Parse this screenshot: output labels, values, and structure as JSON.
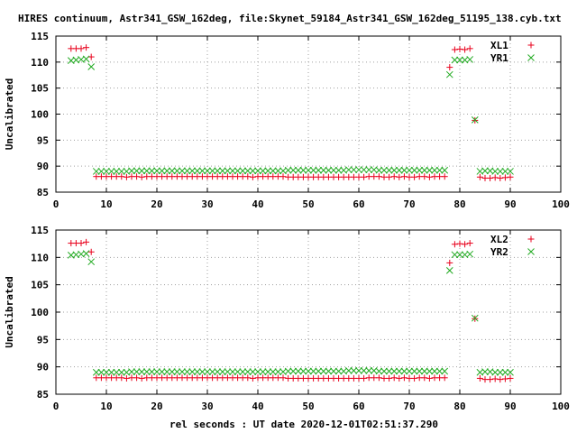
{
  "title": "HIRES continuum, Astr341_GSW_162deg, file:Skynet_59184_Astr341_GSW_162deg_51195_138.cyb.txt",
  "xlabel": "rel seconds : UT date 2020-12-01T02:51:37.290",
  "colors": {
    "xl": "#e8001c",
    "yr": "#22aa22",
    "axis": "#000000"
  },
  "chart_data": [
    {
      "type": "scatter",
      "ylabel": "Uncalibrated",
      "xlim": [
        0,
        100
      ],
      "ylim": [
        85,
        115
      ],
      "xticks": [
        0,
        10,
        20,
        30,
        40,
        50,
        60,
        70,
        80,
        90,
        100
      ],
      "yticks": [
        85,
        90,
        95,
        100,
        105,
        110,
        115
      ],
      "grid": true,
      "legend_position": "top-right",
      "series": [
        {
          "name": "XL1",
          "marker": "plus",
          "color": "#e8001c",
          "x": [
            3,
            4,
            5,
            6,
            7,
            8,
            9,
            10,
            11,
            12,
            13,
            14,
            15,
            16,
            17,
            18,
            19,
            20,
            21,
            22,
            23,
            24,
            25,
            26,
            27,
            28,
            29,
            30,
            31,
            32,
            33,
            34,
            35,
            36,
            37,
            38,
            39,
            40,
            41,
            42,
            43,
            44,
            45,
            46,
            47,
            48,
            49,
            50,
            51,
            52,
            53,
            54,
            55,
            56,
            57,
            58,
            59,
            60,
            61,
            62,
            63,
            64,
            65,
            66,
            67,
            68,
            69,
            70,
            71,
            72,
            73,
            74,
            75,
            76,
            77,
            78,
            79,
            80,
            81,
            82,
            83,
            84,
            85,
            86,
            87,
            88,
            89,
            90
          ],
          "y": [
            112.6,
            112.6,
            112.6,
            112.8,
            111.0,
            88.0,
            88.0,
            88.0,
            88.0,
            88.0,
            88.0,
            87.9,
            88.0,
            88.0,
            87.9,
            88.0,
            88.0,
            88.0,
            88.0,
            88.0,
            88.0,
            88.0,
            88.0,
            88.0,
            88.0,
            88.0,
            88.0,
            88.0,
            88.0,
            88.0,
            88.0,
            88.0,
            88.0,
            88.0,
            88.0,
            88.0,
            87.9,
            88.0,
            88.0,
            88.0,
            88.0,
            88.0,
            88.0,
            87.9,
            87.9,
            87.9,
            87.9,
            87.9,
            87.9,
            87.9,
            87.9,
            87.9,
            87.9,
            87.9,
            87.9,
            87.9,
            87.9,
            87.9,
            87.9,
            88.0,
            88.0,
            88.0,
            87.9,
            87.9,
            88.0,
            87.9,
            88.0,
            87.9,
            87.9,
            88.0,
            88.0,
            87.9,
            88.0,
            88.0,
            88.0,
            109.0,
            112.4,
            112.5,
            112.4,
            112.6,
            98.8,
            87.9,
            87.7,
            87.7,
            87.8,
            87.7,
            87.8,
            87.9
          ]
        },
        {
          "name": "YR1",
          "marker": "cross",
          "color": "#22aa22",
          "x": [
            3,
            4,
            5,
            6,
            7,
            8,
            9,
            10,
            11,
            12,
            13,
            14,
            15,
            16,
            17,
            18,
            19,
            20,
            21,
            22,
            23,
            24,
            25,
            26,
            27,
            28,
            29,
            30,
            31,
            32,
            33,
            34,
            35,
            36,
            37,
            38,
            39,
            40,
            41,
            42,
            43,
            44,
            45,
            46,
            47,
            48,
            49,
            50,
            51,
            52,
            53,
            54,
            55,
            56,
            57,
            58,
            59,
            60,
            61,
            62,
            63,
            64,
            65,
            66,
            67,
            68,
            69,
            70,
            71,
            72,
            73,
            74,
            75,
            76,
            77,
            78,
            79,
            80,
            81,
            82,
            83,
            84,
            85,
            86,
            87,
            88,
            89,
            90
          ],
          "y": [
            110.3,
            110.4,
            110.5,
            110.6,
            109.1,
            89.0,
            89.0,
            89.0,
            89.0,
            89.0,
            89.0,
            89.0,
            89.1,
            89.1,
            89.1,
            89.1,
            89.1,
            89.1,
            89.1,
            89.1,
            89.1,
            89.1,
            89.1,
            89.1,
            89.1,
            89.1,
            89.1,
            89.1,
            89.1,
            89.1,
            89.1,
            89.1,
            89.1,
            89.1,
            89.1,
            89.1,
            89.1,
            89.1,
            89.1,
            89.1,
            89.1,
            89.1,
            89.1,
            89.2,
            89.2,
            89.2,
            89.2,
            89.2,
            89.2,
            89.2,
            89.2,
            89.2,
            89.2,
            89.2,
            89.2,
            89.3,
            89.3,
            89.3,
            89.3,
            89.3,
            89.3,
            89.2,
            89.2,
            89.2,
            89.2,
            89.2,
            89.2,
            89.2,
            89.2,
            89.2,
            89.2,
            89.2,
            89.2,
            89.2,
            89.2,
            107.6,
            110.4,
            110.4,
            110.4,
            110.5,
            98.9,
            89.0,
            89.1,
            89.1,
            89.0,
            89.0,
            89.0,
            89.0
          ]
        }
      ]
    },
    {
      "type": "scatter",
      "ylabel": "Uncalibrated",
      "xlim": [
        0,
        100
      ],
      "ylim": [
        85,
        115
      ],
      "xticks": [
        0,
        10,
        20,
        30,
        40,
        50,
        60,
        70,
        80,
        90,
        100
      ],
      "yticks": [
        85,
        90,
        95,
        100,
        105,
        110,
        115
      ],
      "grid": true,
      "legend_position": "top-right",
      "series": [
        {
          "name": "XL2",
          "marker": "plus",
          "color": "#e8001c",
          "x": [
            3,
            4,
            5,
            6,
            7,
            8,
            9,
            10,
            11,
            12,
            13,
            14,
            15,
            16,
            17,
            18,
            19,
            20,
            21,
            22,
            23,
            24,
            25,
            26,
            27,
            28,
            29,
            30,
            31,
            32,
            33,
            34,
            35,
            36,
            37,
            38,
            39,
            40,
            41,
            42,
            43,
            44,
            45,
            46,
            47,
            48,
            49,
            50,
            51,
            52,
            53,
            54,
            55,
            56,
            57,
            58,
            59,
            60,
            61,
            62,
            63,
            64,
            65,
            66,
            67,
            68,
            69,
            70,
            71,
            72,
            73,
            74,
            75,
            76,
            77,
            78,
            79,
            80,
            81,
            82,
            83,
            84,
            85,
            86,
            87,
            88,
            89,
            90
          ],
          "y": [
            112.6,
            112.6,
            112.6,
            112.8,
            111.0,
            88.0,
            88.0,
            88.0,
            88.0,
            88.0,
            88.0,
            87.9,
            88.0,
            88.0,
            87.9,
            88.0,
            88.0,
            88.0,
            88.0,
            88.0,
            88.0,
            88.0,
            88.0,
            88.0,
            88.0,
            88.0,
            88.0,
            88.0,
            88.0,
            88.0,
            88.0,
            88.0,
            88.0,
            88.0,
            88.0,
            88.0,
            87.9,
            88.0,
            88.0,
            88.0,
            88.0,
            88.0,
            88.0,
            87.9,
            87.9,
            87.9,
            87.9,
            87.9,
            87.9,
            87.9,
            87.9,
            87.9,
            87.9,
            87.9,
            87.9,
            87.9,
            87.9,
            87.9,
            87.9,
            88.0,
            88.0,
            88.0,
            87.9,
            87.9,
            88.0,
            87.9,
            88.0,
            87.9,
            87.9,
            88.0,
            88.0,
            87.9,
            88.0,
            88.0,
            88.0,
            109.0,
            112.4,
            112.5,
            112.4,
            112.6,
            98.8,
            87.9,
            87.7,
            87.7,
            87.8,
            87.7,
            87.8,
            87.9
          ]
        },
        {
          "name": "YR2",
          "marker": "cross",
          "color": "#22aa22",
          "x": [
            3,
            4,
            5,
            6,
            7,
            8,
            9,
            10,
            11,
            12,
            13,
            14,
            15,
            16,
            17,
            18,
            19,
            20,
            21,
            22,
            23,
            24,
            25,
            26,
            27,
            28,
            29,
            30,
            31,
            32,
            33,
            34,
            35,
            36,
            37,
            38,
            39,
            40,
            41,
            42,
            43,
            44,
            45,
            46,
            47,
            48,
            49,
            50,
            51,
            52,
            53,
            54,
            55,
            56,
            57,
            58,
            59,
            60,
            61,
            62,
            63,
            64,
            65,
            66,
            67,
            68,
            69,
            70,
            71,
            72,
            73,
            74,
            75,
            76,
            77,
            78,
            79,
            80,
            81,
            82,
            83,
            84,
            85,
            86,
            87,
            88,
            89,
            90
          ],
          "y": [
            110.4,
            110.5,
            110.6,
            110.7,
            109.2,
            89.0,
            89.0,
            89.0,
            89.0,
            89.0,
            89.0,
            89.0,
            89.1,
            89.1,
            89.1,
            89.1,
            89.1,
            89.1,
            89.1,
            89.1,
            89.1,
            89.1,
            89.1,
            89.1,
            89.1,
            89.1,
            89.1,
            89.1,
            89.1,
            89.1,
            89.1,
            89.1,
            89.1,
            89.1,
            89.1,
            89.1,
            89.1,
            89.1,
            89.1,
            89.1,
            89.1,
            89.1,
            89.1,
            89.2,
            89.2,
            89.2,
            89.2,
            89.2,
            89.2,
            89.2,
            89.2,
            89.2,
            89.2,
            89.2,
            89.2,
            89.3,
            89.3,
            89.3,
            89.3,
            89.3,
            89.3,
            89.2,
            89.2,
            89.2,
            89.2,
            89.2,
            89.2,
            89.2,
            89.2,
            89.2,
            89.2,
            89.2,
            89.2,
            89.2,
            89.2,
            107.6,
            110.5,
            110.5,
            110.5,
            110.6,
            98.9,
            89.0,
            89.1,
            89.1,
            89.0,
            89.0,
            89.0,
            89.0
          ]
        }
      ]
    }
  ]
}
